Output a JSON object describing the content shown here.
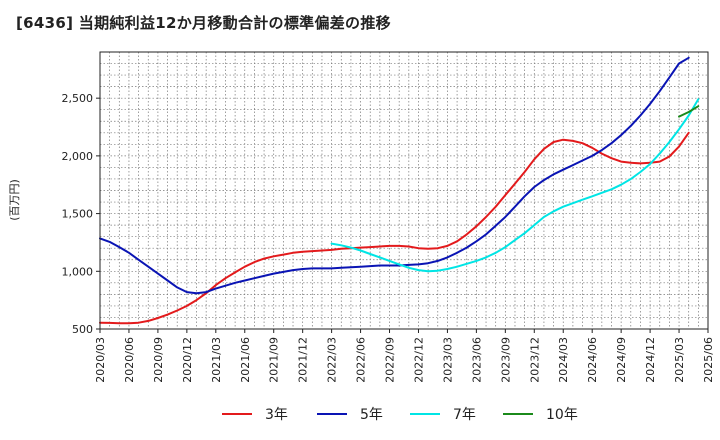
{
  "chart_data": {
    "type": "line",
    "title": "[6436]  当期純利益12か月移動合計の標準偏差の推移",
    "ylabel": "(百万円)",
    "xlabel": "",
    "x_tick_labels": [
      "2020/03",
      "2020/06",
      "2020/09",
      "2020/12",
      "2021/03",
      "2021/06",
      "2021/09",
      "2021/12",
      "2022/03",
      "2022/06",
      "2022/09",
      "2022/12",
      "2023/03",
      "2023/06",
      "2023/09",
      "2023/12",
      "2024/03",
      "2024/06",
      "2024/09",
      "2024/12",
      "2025/03",
      "2025/06"
    ],
    "x_range": [
      "2020/03",
      "2025/06"
    ],
    "y_ticks": [
      500,
      1000,
      1500,
      2000,
      2500
    ],
    "y_tick_labels": [
      "500",
      "1,000",
      "1,500",
      "2,000",
      "2,500"
    ],
    "ylim": [
      500,
      2900
    ],
    "grid": true,
    "legend_position": "bottom",
    "series": [
      {
        "name": "3年",
        "color": "#e31a1c",
        "points": [
          [
            "2020/03",
            555
          ],
          [
            "2020/04",
            553
          ],
          [
            "2020/05",
            550
          ],
          [
            "2020/06",
            550
          ],
          [
            "2020/07",
            555
          ],
          [
            "2020/08",
            570
          ],
          [
            "2020/09",
            595
          ],
          [
            "2020/10",
            625
          ],
          [
            "2020/11",
            660
          ],
          [
            "2020/12",
            700
          ],
          [
            "2021/01",
            750
          ],
          [
            "2021/02",
            810
          ],
          [
            "2021/03",
            880
          ],
          [
            "2021/04",
            940
          ],
          [
            "2021/05",
            990
          ],
          [
            "2021/06",
            1040
          ],
          [
            "2021/07",
            1080
          ],
          [
            "2021/08",
            1110
          ],
          [
            "2021/09",
            1130
          ],
          [
            "2021/10",
            1145
          ],
          [
            "2021/11",
            1160
          ],
          [
            "2021/12",
            1170
          ],
          [
            "2022/01",
            1175
          ],
          [
            "2022/02",
            1180
          ],
          [
            "2022/03",
            1185
          ],
          [
            "2022/04",
            1195
          ],
          [
            "2022/05",
            1200
          ],
          [
            "2022/06",
            1205
          ],
          [
            "2022/07",
            1210
          ],
          [
            "2022/08",
            1215
          ],
          [
            "2022/09",
            1220
          ],
          [
            "2022/10",
            1220
          ],
          [
            "2022/11",
            1215
          ],
          [
            "2022/12",
            1200
          ],
          [
            "2023/01",
            1195
          ],
          [
            "2023/02",
            1200
          ],
          [
            "2023/03",
            1220
          ],
          [
            "2023/04",
            1260
          ],
          [
            "2023/05",
            1320
          ],
          [
            "2023/06",
            1390
          ],
          [
            "2023/07",
            1470
          ],
          [
            "2023/08",
            1560
          ],
          [
            "2023/09",
            1660
          ],
          [
            "2023/10",
            1760
          ],
          [
            "2023/11",
            1860
          ],
          [
            "2023/12",
            1970
          ],
          [
            "2024/01",
            2060
          ],
          [
            "2024/02",
            2120
          ],
          [
            "2024/03",
            2140
          ],
          [
            "2024/04",
            2130
          ],
          [
            "2024/05",
            2110
          ],
          [
            "2024/06",
            2070
          ],
          [
            "2024/07",
            2020
          ],
          [
            "2024/08",
            1980
          ],
          [
            "2024/09",
            1950
          ],
          [
            "2024/10",
            1940
          ],
          [
            "2024/11",
            1935
          ],
          [
            "2024/12",
            1940
          ],
          [
            "2025/01",
            1950
          ],
          [
            "2025/02",
            1995
          ],
          [
            "2025/03",
            2080
          ],
          [
            "2025/04",
            2200
          ]
        ]
      },
      {
        "name": "5年",
        "color": "#0a14b4",
        "points": [
          [
            "2020/03",
            1285
          ],
          [
            "2020/04",
            1255
          ],
          [
            "2020/05",
            1210
          ],
          [
            "2020/06",
            1160
          ],
          [
            "2020/07",
            1100
          ],
          [
            "2020/08",
            1040
          ],
          [
            "2020/09",
            980
          ],
          [
            "2020/10",
            920
          ],
          [
            "2020/11",
            860
          ],
          [
            "2020/12",
            820
          ],
          [
            "2021/01",
            810
          ],
          [
            "2021/02",
            820
          ],
          [
            "2021/03",
            850
          ],
          [
            "2021/04",
            875
          ],
          [
            "2021/05",
            900
          ],
          [
            "2021/06",
            920
          ],
          [
            "2021/07",
            940
          ],
          [
            "2021/08",
            960
          ],
          [
            "2021/09",
            980
          ],
          [
            "2021/10",
            995
          ],
          [
            "2021/11",
            1010
          ],
          [
            "2021/12",
            1020
          ],
          [
            "2022/01",
            1025
          ],
          [
            "2022/02",
            1025
          ],
          [
            "2022/03",
            1025
          ],
          [
            "2022/04",
            1030
          ],
          [
            "2022/05",
            1035
          ],
          [
            "2022/06",
            1040
          ],
          [
            "2022/07",
            1045
          ],
          [
            "2022/08",
            1050
          ],
          [
            "2022/09",
            1050
          ],
          [
            "2022/10",
            1050
          ],
          [
            "2022/11",
            1055
          ],
          [
            "2022/12",
            1060
          ],
          [
            "2023/01",
            1070
          ],
          [
            "2023/02",
            1090
          ],
          [
            "2023/03",
            1120
          ],
          [
            "2023/04",
            1160
          ],
          [
            "2023/05",
            1205
          ],
          [
            "2023/06",
            1260
          ],
          [
            "2023/07",
            1320
          ],
          [
            "2023/08",
            1395
          ],
          [
            "2023/09",
            1470
          ],
          [
            "2023/10",
            1560
          ],
          [
            "2023/11",
            1650
          ],
          [
            "2023/12",
            1730
          ],
          [
            "2024/01",
            1790
          ],
          [
            "2024/02",
            1840
          ],
          [
            "2024/03",
            1880
          ],
          [
            "2024/04",
            1920
          ],
          [
            "2024/05",
            1960
          ],
          [
            "2024/06",
            2000
          ],
          [
            "2024/07",
            2050
          ],
          [
            "2024/08",
            2110
          ],
          [
            "2024/09",
            2180
          ],
          [
            "2024/10",
            2260
          ],
          [
            "2024/11",
            2350
          ],
          [
            "2024/12",
            2450
          ],
          [
            "2025/01",
            2560
          ],
          [
            "2025/02",
            2680
          ],
          [
            "2025/03",
            2800
          ],
          [
            "2025/04",
            2850
          ]
        ]
      },
      {
        "name": "7年",
        "color": "#00e5e5",
        "points": [
          [
            "2022/03",
            1240
          ],
          [
            "2022/04",
            1225
          ],
          [
            "2022/05",
            1205
          ],
          [
            "2022/06",
            1180
          ],
          [
            "2022/07",
            1150
          ],
          [
            "2022/08",
            1120
          ],
          [
            "2022/09",
            1090
          ],
          [
            "2022/10",
            1060
          ],
          [
            "2022/11",
            1030
          ],
          [
            "2022/12",
            1010
          ],
          [
            "2023/01",
            1000
          ],
          [
            "2023/02",
            1005
          ],
          [
            "2023/03",
            1020
          ],
          [
            "2023/04",
            1040
          ],
          [
            "2023/05",
            1065
          ],
          [
            "2023/06",
            1090
          ],
          [
            "2023/07",
            1120
          ],
          [
            "2023/08",
            1160
          ],
          [
            "2023/09",
            1210
          ],
          [
            "2023/10",
            1270
          ],
          [
            "2023/11",
            1330
          ],
          [
            "2023/12",
            1400
          ],
          [
            "2024/01",
            1470
          ],
          [
            "2024/02",
            1520
          ],
          [
            "2024/03",
            1560
          ],
          [
            "2024/04",
            1590
          ],
          [
            "2024/05",
            1620
          ],
          [
            "2024/06",
            1650
          ],
          [
            "2024/07",
            1680
          ],
          [
            "2024/08",
            1710
          ],
          [
            "2024/09",
            1750
          ],
          [
            "2024/10",
            1800
          ],
          [
            "2024/11",
            1860
          ],
          [
            "2024/12",
            1930
          ],
          [
            "2025/01",
            2020
          ],
          [
            "2025/02",
            2120
          ],
          [
            "2025/03",
            2230
          ],
          [
            "2025/04",
            2350
          ],
          [
            "2025/05",
            2490
          ]
        ]
      },
      {
        "name": "10年",
        "color": "#1b8a1b",
        "points": [
          [
            "2025/03",
            2340
          ],
          [
            "2025/04",
            2380
          ],
          [
            "2025/05",
            2430
          ]
        ]
      }
    ]
  }
}
